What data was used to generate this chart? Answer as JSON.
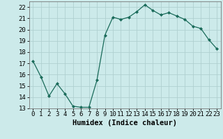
{
  "x": [
    0,
    1,
    2,
    3,
    4,
    5,
    6,
    7,
    8,
    9,
    10,
    11,
    12,
    13,
    14,
    15,
    16,
    17,
    18,
    19,
    20,
    21,
    22,
    23
  ],
  "y": [
    17.2,
    15.8,
    14.1,
    15.2,
    14.3,
    13.2,
    13.1,
    13.1,
    15.5,
    19.5,
    21.1,
    20.9,
    21.1,
    21.6,
    22.2,
    21.7,
    21.3,
    21.5,
    21.2,
    20.9,
    20.3,
    20.1,
    19.1,
    18.3
  ],
  "line_color": "#1a6b5a",
  "marker": "D",
  "marker_size": 2.0,
  "bg_color": "#cceaea",
  "grid_color": "#b0d0d0",
  "xlabel": "Humidex (Indice chaleur)",
  "ylim": [
    13,
    22.5
  ],
  "xlim": [
    -0.5,
    23.5
  ],
  "yticks": [
    13,
    14,
    15,
    16,
    17,
    18,
    19,
    20,
    21,
    22
  ],
  "xticks": [
    0,
    1,
    2,
    3,
    4,
    5,
    6,
    7,
    8,
    9,
    10,
    11,
    12,
    13,
    14,
    15,
    16,
    17,
    18,
    19,
    20,
    21,
    22,
    23
  ],
  "xlabel_fontsize": 7.5,
  "tick_fontsize": 6.5
}
